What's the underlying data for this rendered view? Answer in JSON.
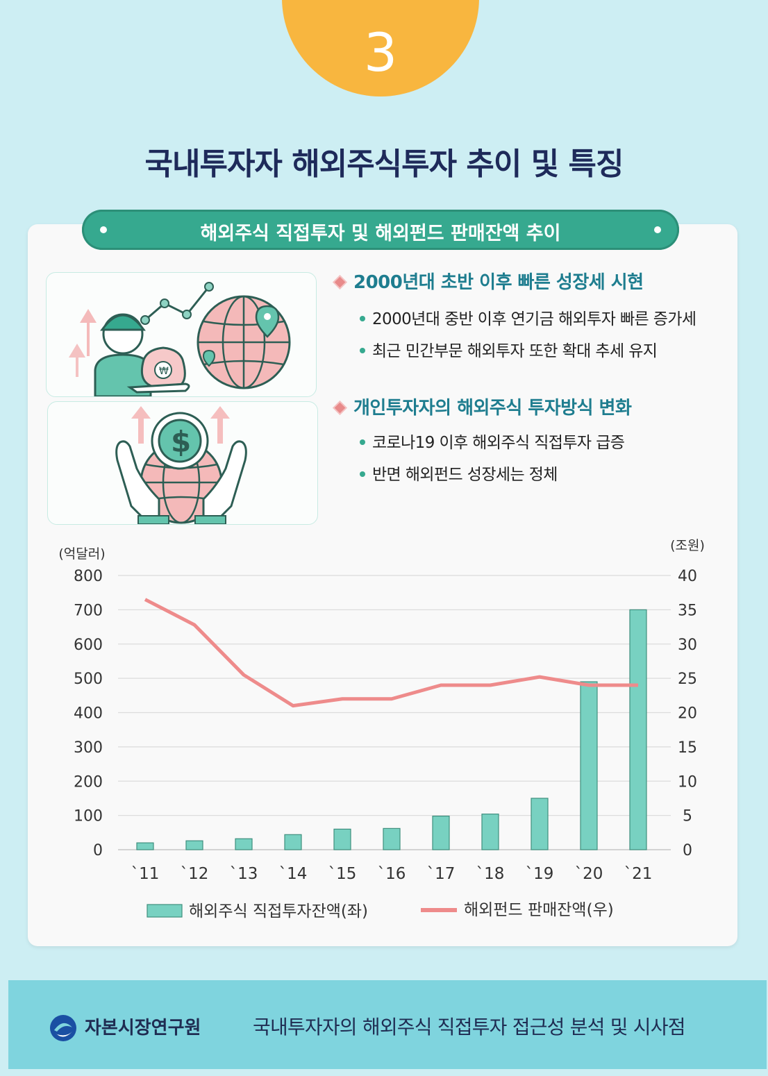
{
  "badge": {
    "number": "3"
  },
  "title": "국내투자자 해외주식투자 추이 및 특징",
  "ribbon": {
    "label": "해외주식 직접투자 및 해외펀드 판매잔액 추이"
  },
  "points": [
    {
      "heading": "2000년대 초반 이후 빠른 성장세 시현",
      "bullets": [
        "2000년대 중반 이후 연기금 해외투자 빠른 증가세",
        "최근 민간부문 해외투자 또한 확대 추세 유지"
      ]
    },
    {
      "heading": "개인투자자의 해외주식 투자방식 변화",
      "bullets": [
        "코로나19 이후 해외주식 직접투자 급증",
        "반면 해외펀드 성장세는 정체"
      ]
    }
  ],
  "icons": {
    "illustration_1": "investor-money-globe-icon",
    "illustration_2": "hands-globe-dollar-icon"
  },
  "colors": {
    "bar": "#78d1c1",
    "line": "#ee8b8b",
    "accent": "#36a98f",
    "badge": "#f8b63f",
    "title": "#1e2a5a"
  },
  "chart_data": {
    "type": "bar",
    "categories": [
      "`11",
      "`12",
      "`13",
      "`14",
      "`15",
      "`16",
      "`17",
      "`18",
      "`19",
      "`20",
      "`21"
    ],
    "y_left_unit": "(억달러)",
    "y_right_unit": "(조원)",
    "y_left_ticks": [
      "0",
      "100",
      "200",
      "300",
      "400",
      "500",
      "600",
      "700",
      "800"
    ],
    "y_right_ticks": [
      "0",
      "5",
      "10",
      "15",
      "20",
      "25",
      "30",
      "35",
      "40"
    ],
    "ylim_left": [
      0,
      800
    ],
    "ylim_right": [
      0,
      40
    ],
    "grid": true,
    "legend_position": "bottom",
    "series": [
      {
        "name": "해외주식 직접투자잔액(좌)",
        "type": "bar",
        "axis": "left",
        "values": [
          20,
          26,
          32,
          44,
          60,
          62,
          98,
          104,
          150,
          490,
          700
        ]
      },
      {
        "name": "해외펀드 판매잔액(우)",
        "type": "line",
        "axis": "right",
        "values": [
          36.5,
          32.8,
          25.5,
          21.0,
          22.0,
          22.0,
          24.0,
          24.0,
          25.2,
          24.0,
          24.0
        ]
      }
    ]
  },
  "footer": {
    "org_name": "자본시장연구원",
    "report_title": "국내투자자의 해외주식 직접투자 접근성 분석 및 시사점"
  }
}
